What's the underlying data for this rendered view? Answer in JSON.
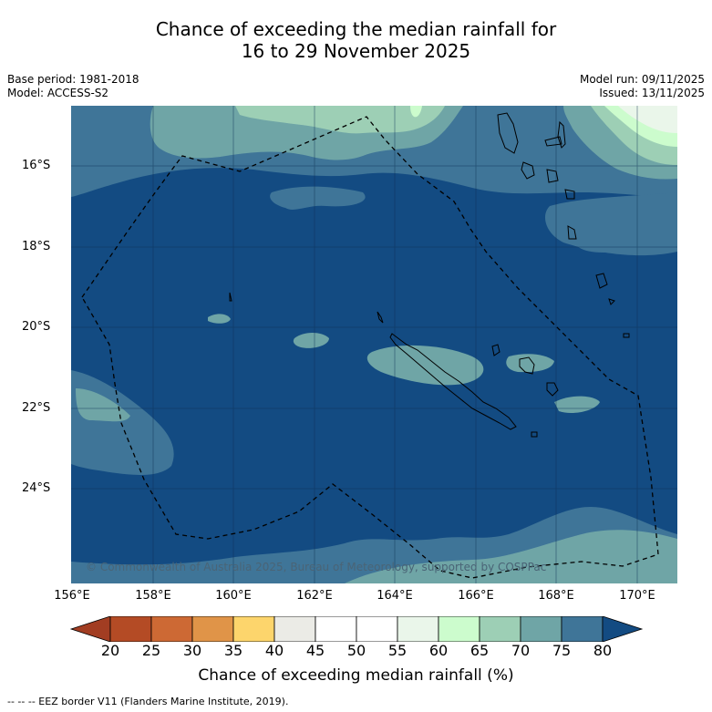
{
  "title": {
    "line1": "Chance of exceeding the median rainfall for",
    "line2": "16 to 29 November 2025"
  },
  "meta": {
    "base_period": "Base period: 1981-2018",
    "model": "Model: ACCESS-S2",
    "model_run": "Model run: 09/11/2025",
    "issued": "Issued: 13/11/2025"
  },
  "map": {
    "lat_labels": [
      "16°S",
      "18°S",
      "20°S",
      "22°S",
      "24°S"
    ],
    "lon_labels": [
      "156°E",
      "158°E",
      "160°E",
      "162°E",
      "164°E",
      "166°E",
      "168°E",
      "170°E"
    ],
    "copyright": "© Commonwealth of Australia 2025, Bureau of Meteorology, supported by COSPPac",
    "colors": {
      "ocean_80": "#134b82",
      "band_75": "#3f7598",
      "band_70": "#6fa5a6",
      "band_65": "#9dcfb5",
      "band_60": "#ccfccd",
      "band_55": "#eaf6ea"
    }
  },
  "colorbar": {
    "ticks": [
      "20",
      "25",
      "30",
      "35",
      "40",
      "45",
      "50",
      "55",
      "60",
      "65",
      "70",
      "75",
      "80"
    ],
    "colors": [
      "#a23d22",
      "#b44b25",
      "#cd6934",
      "#e09448",
      "#fdd56c",
      "#ebebe6",
      "#ffffff",
      "#ffffff",
      "#eaf6ea",
      "#ccfccd",
      "#9dcfb5",
      "#6fa5a6",
      "#3f7598",
      "#134b82"
    ],
    "label": "Chance of exceeding median rainfall (%)"
  },
  "footnote": "-- -- -- EEZ border V11 (Flanders Marine Institute, 2019)."
}
